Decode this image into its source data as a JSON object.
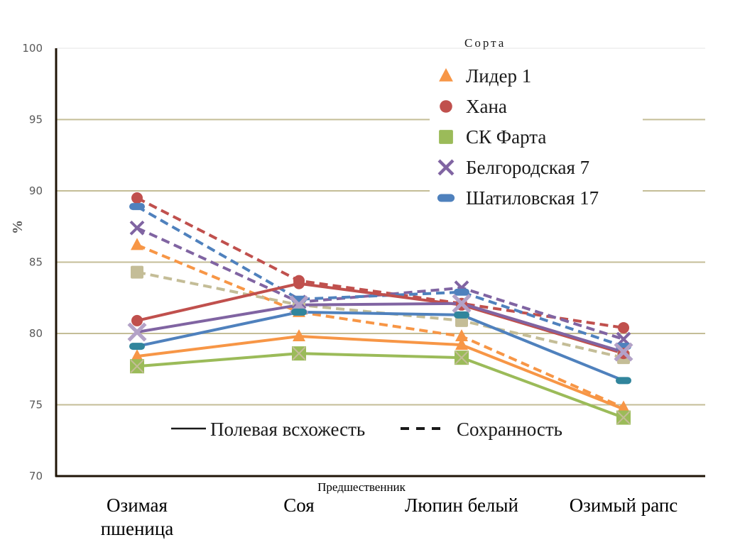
{
  "chart_data": {
    "type": "line",
    "title": "",
    "xlabel": "Предшественник",
    "ylabel": "%",
    "ylim": [
      70,
      100
    ],
    "yticks": [
      "70",
      "75",
      "80",
      "85",
      "90",
      "95",
      "100"
    ],
    "grid": true,
    "categories": [
      "Озимая пшеница",
      "Соя",
      "Люпин белый",
      "Озимый рапс"
    ],
    "category_lines": [
      [
        "Озимая",
        "пшеница"
      ],
      [
        "Соя"
      ],
      [
        "Люпин белый"
      ],
      [
        "Озимый рапс"
      ]
    ],
    "legend": {
      "title": "Сорта",
      "placement": "top-right",
      "varieties": [
        {
          "name": "Лидер 1",
          "color": "#f79646",
          "marker": "triangle"
        },
        {
          "name": "Хана",
          "color": "#c0504d",
          "marker": "circle"
        },
        {
          "name": "СК Фарта",
          "color": "#9bbb59",
          "marker": "square"
        },
        {
          "name": "Белгородская 7",
          "color": "#8064a2",
          "marker": "x"
        },
        {
          "name": "Шатиловская 17",
          "color": "#4f81bd",
          "marker": "dash"
        }
      ],
      "line_styles": [
        {
          "name": "Полевая всхожесть",
          "style": "solid"
        },
        {
          "name": "Сохранность",
          "style": "dashed"
        }
      ]
    },
    "series": [
      {
        "name": "Лидер 1 — Сохранность",
        "variety": "Лидер 1",
        "style": "dashed",
        "color": "#f79646",
        "marker_color": "#f79646",
        "marker": "triangle",
        "values": [
          86.2,
          81.5,
          79.8,
          74.8
        ]
      },
      {
        "name": "Хана — Сохранность",
        "variety": "Хана",
        "style": "dashed",
        "color": "#c0504d",
        "marker_color": "#c0504d",
        "marker": "circle",
        "values": [
          89.5,
          83.7,
          82.1,
          80.4
        ]
      },
      {
        "name": "СК Фарта — Сохранность",
        "variety": "СК Фарта",
        "style": "dashed",
        "color": "#c4bd97",
        "marker_color": "#c4bd97",
        "marker": "square",
        "values": [
          84.3,
          82.0,
          80.9,
          78.3
        ]
      },
      {
        "name": "Белгородская 7 — Сохранность",
        "variety": "Белгородская 7",
        "style": "dashed",
        "color": "#8064a2",
        "marker_color": "#8064a2",
        "marker": "x",
        "values": [
          87.4,
          82.2,
          83.2,
          79.6
        ]
      },
      {
        "name": "Шатиловская 17 — Сохранность",
        "variety": "Шатиловская 17",
        "style": "dashed",
        "color": "#4f81bd",
        "marker_color": "#4f81bd",
        "marker": "dash",
        "values": [
          88.9,
          82.4,
          82.9,
          79.1
        ]
      },
      {
        "name": "Лидер 1 — Полевая всхожесть",
        "variety": "Лидер 1",
        "style": "solid",
        "color": "#f79646",
        "marker_color": "#f79646",
        "marker": "triangle",
        "values": [
          78.4,
          79.8,
          79.2,
          74.7
        ]
      },
      {
        "name": "Хана — Полевая всхожесть",
        "variety": "Хана",
        "style": "solid",
        "color": "#c0504d",
        "marker_color": "#c0504d",
        "marker": "circle",
        "values": [
          80.9,
          83.5,
          82.0,
          78.6
        ]
      },
      {
        "name": "СК Фарта — Полевая всхожесть",
        "variety": "СК Фарта",
        "style": "solid",
        "color": "#9bbb59",
        "marker_color": "#9bbb59",
        "marker": "square-x",
        "values": [
          77.7,
          78.6,
          78.3,
          74.1
        ]
      },
      {
        "name": "Белгородская 7 — Полевая всхожесть",
        "variety": "Белгородская 7",
        "style": "solid",
        "color": "#8064a2",
        "marker_color": "#b3a2c7",
        "marker": "x",
        "values": [
          80.1,
          82.0,
          82.1,
          78.7
        ]
      },
      {
        "name": "Шатиловская 17 — Полевая всхожесть",
        "variety": "Шатиловская 17",
        "style": "solid",
        "color": "#4f81bd",
        "marker_color": "#31859c",
        "marker": "dash",
        "values": [
          79.1,
          81.5,
          81.3,
          76.7
        ]
      }
    ]
  }
}
